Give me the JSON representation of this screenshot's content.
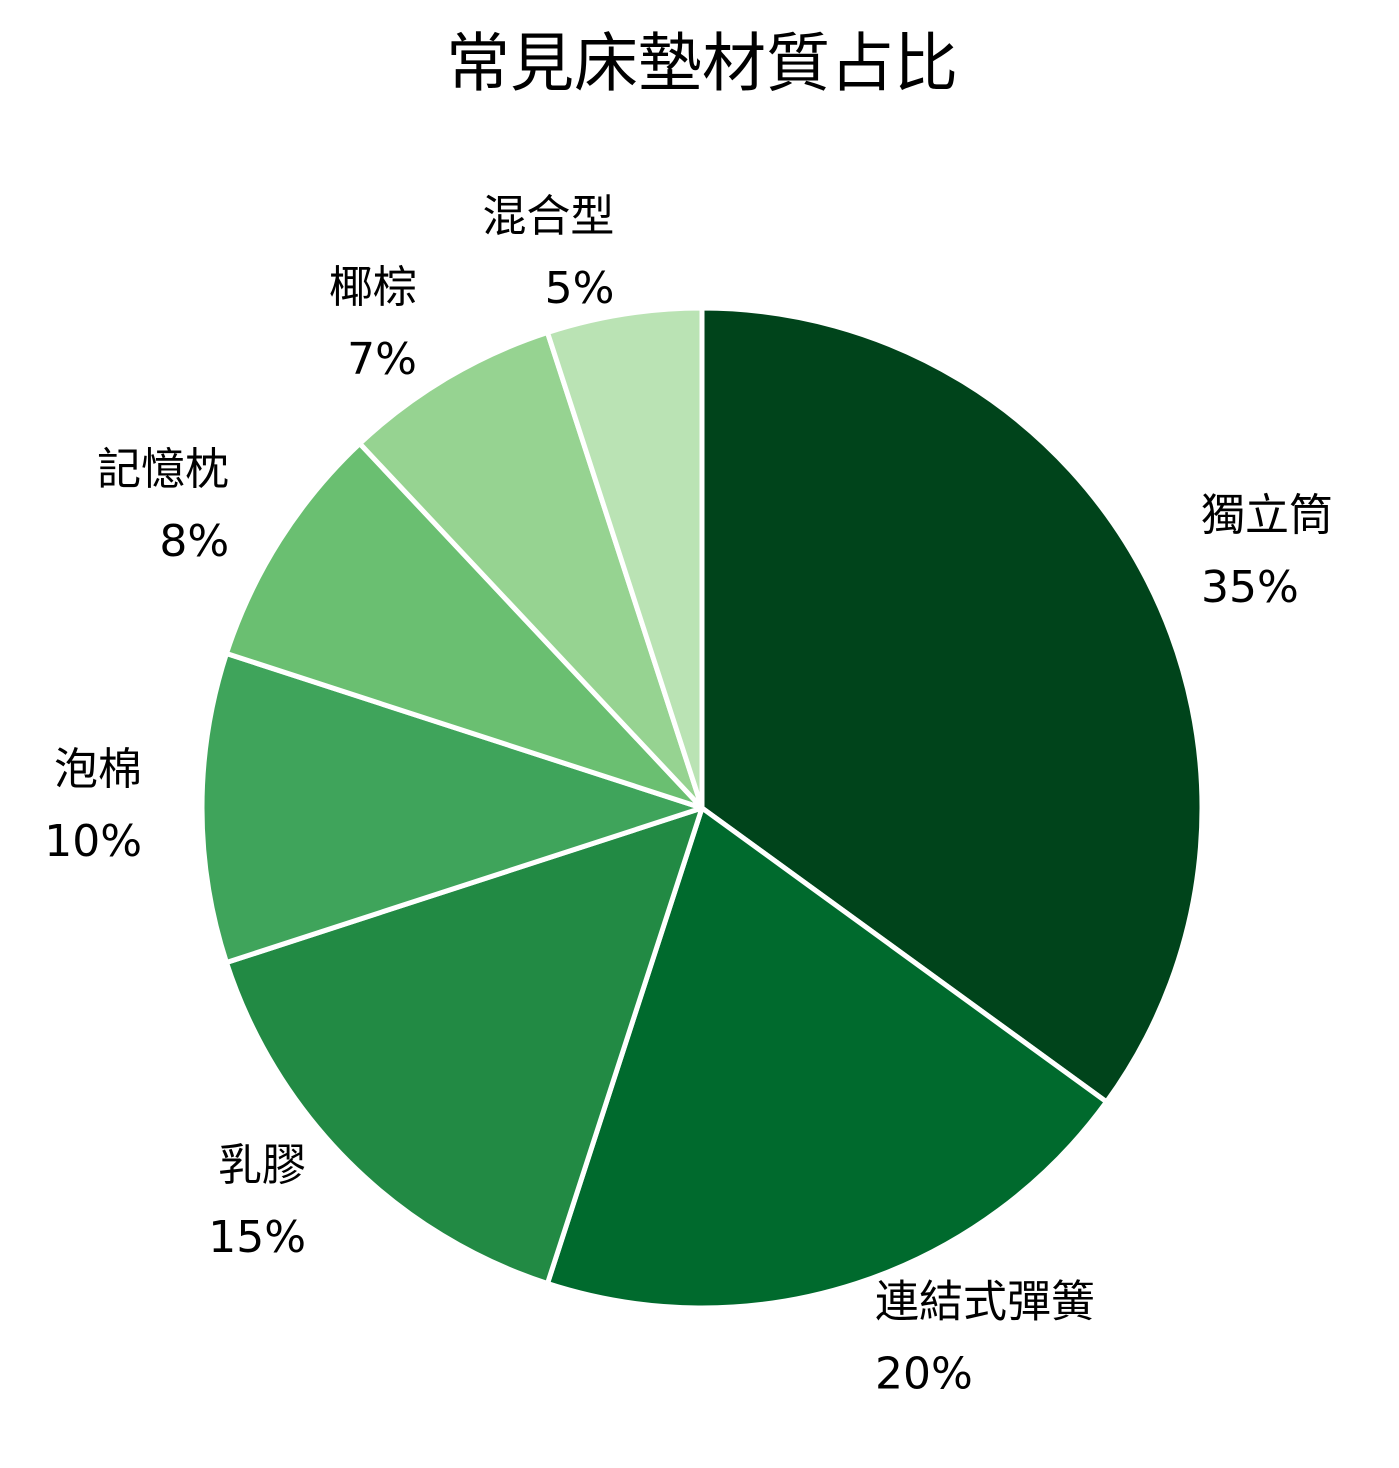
{
  "chart_data": {
    "type": "pie",
    "title": "常見床墊材質占比",
    "categories": [
      "獨立筒",
      "連結式彈簧",
      "乳膠",
      "泡棉",
      "記憶枕",
      "椰棕",
      "混合型"
    ],
    "values": [
      35,
      20,
      15,
      10,
      8,
      7,
      5
    ],
    "value_labels": [
      "35%",
      "20%",
      "15%",
      "10%",
      "8%",
      "7%",
      "5%"
    ],
    "colors": [
      "#00441b",
      "#006a2d",
      "#228a44",
      "#3fa45b",
      "#6abf71",
      "#96d391",
      "#bae3b4"
    ]
  }
}
